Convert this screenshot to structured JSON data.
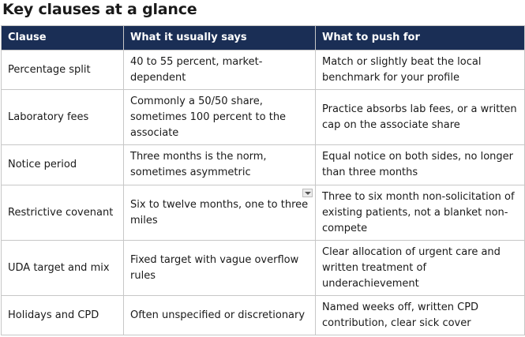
{
  "title": "Key clauses at a glance",
  "colors": {
    "header_background": "#1a2e55",
    "header_text": "#ffffff",
    "border": "#c7c7c7"
  },
  "table": {
    "headers": [
      "Clause",
      "What it usually says",
      "What to push for"
    ],
    "rows": [
      {
        "clause": "Percentage split",
        "usually": "40 to 55 percent, market-dependent",
        "push": "Match or slightly beat the local benchmark for your profile"
      },
      {
        "clause": "Laboratory fees",
        "usually": "Commonly a 50/50 share, sometimes 100 percent to the associate",
        "push": "Practice absorbs lab fees, or a written cap on the associate share"
      },
      {
        "clause": "Notice period",
        "usually": "Three months is the norm, sometimes asymmetric",
        "push": "Equal notice on both sides, no longer than three months"
      },
      {
        "clause": "Restrictive covenant",
        "usually": "Six to twelve months, one to three miles",
        "push": "Three to six month non-solicitation of existing patients, not a blanket non-compete"
      },
      {
        "clause": "UDA target and mix",
        "usually": "Fixed target with vague overflow rules",
        "push": "Clear allocation of urgent care and written treatment of underachievement"
      },
      {
        "clause": "Holidays and CPD",
        "usually": "Often unspecified or discretionary",
        "push": "Named weeks off, written CPD contribution, clear sick cover"
      }
    ]
  }
}
